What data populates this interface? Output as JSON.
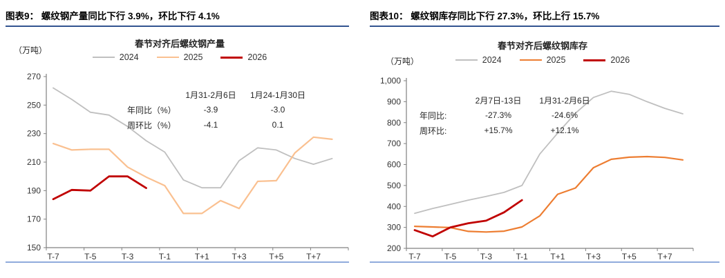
{
  "figures": [
    {
      "caption": "图表9：  螺纹钢产量同比下行 3.9%，环比下行 4.1%",
      "annotation": {
        "col1_header": "1月31-2月6日",
        "col2_header": "1月24-1月30日",
        "rows": [
          {
            "label": "年同比（%）",
            "v1": "-3.9",
            "v2": "-3.0"
          },
          {
            "label": "周环比（%）",
            "v1": "-4.1",
            "v2": "0.1"
          }
        ]
      }
    },
    {
      "caption": "图表10：  螺纹钢库存同比下行 27.3%，环比上行 15.7%",
      "annotation": {
        "col1_header": "2月7日-13日",
        "col2_header": "1月31-2月6日",
        "rows": [
          {
            "label": "年同比:",
            "v1": "-27.3%",
            "v2": "-24.6%"
          },
          {
            "label": "周环比:",
            "v1": "+15.7%",
            "v2": "+12.1%"
          }
        ]
      }
    }
  ],
  "chart_data": [
    {
      "type": "line",
      "title": "春节对齐后螺纹钢产量",
      "unit": "（万吨）",
      "ylabel": "万吨",
      "ylim": [
        150,
        270
      ],
      "yticks": [
        "150",
        "170",
        "190",
        "210",
        "230",
        "250",
        "270"
      ],
      "grid": false,
      "legend_position": "top",
      "categories": [
        "T-7",
        "T-6",
        "T-5",
        "T-4",
        "T-3",
        "T-2",
        "T-1",
        "T",
        "T+1",
        "T+2",
        "T+3",
        "T+4",
        "T+5",
        "T+6",
        "T+7",
        "T+8"
      ],
      "xtick_labels": [
        "T-7",
        "T-5",
        "T-3",
        "T-1",
        "T+1",
        "T+3",
        "T+5",
        "T+7"
      ],
      "series": [
        {
          "name": "2024",
          "color": "#BFBFBF",
          "width": 1.8,
          "values": [
            262,
            254,
            245,
            243,
            235,
            225,
            217,
            197.5,
            192,
            192,
            211,
            220,
            218.5,
            212.5,
            208.5,
            212.5
          ]
        },
        {
          "name": "2025",
          "color": "#FAC090",
          "width": 2.2,
          "values": [
            223,
            218.5,
            219,
            219,
            206.5,
            199.5,
            193.5,
            174,
            174,
            183,
            177.5,
            196.5,
            197,
            216.5,
            227.5,
            226
          ]
        },
        {
          "name": "2026",
          "color": "#C00000",
          "width": 2.8,
          "values": [
            184,
            190.5,
            190,
            200,
            200,
            191.8,
            null,
            null,
            null,
            null,
            null,
            null,
            null,
            null,
            null,
            null
          ]
        }
      ]
    },
    {
      "type": "line",
      "title": "春节对齐后螺纹钢库存",
      "unit": "（万吨）",
      "ylabel": "万吨",
      "ylim": [
        200,
        1000
      ],
      "yticks": [
        "200",
        "300",
        "400",
        "500",
        "600",
        "700",
        "800",
        "900",
        "1,000"
      ],
      "grid": false,
      "legend_position": "top",
      "categories": [
        "T-7",
        "T-6",
        "T-5",
        "T-4",
        "T-3",
        "T-2",
        "T-1",
        "T",
        "T+1",
        "T+2",
        "T+3",
        "T+4",
        "T+5",
        "T+6",
        "T+7",
        "T+8"
      ],
      "xtick_labels": [
        "T-7",
        "T-5",
        "T-3",
        "T-1",
        "T+1",
        "T+3",
        "T+5",
        "T+7"
      ],
      "series": [
        {
          "name": "2024",
          "color": "#BFBFBF",
          "width": 1.8,
          "values": [
            367,
            390,
            410,
            430,
            448,
            467,
            500,
            650,
            750,
            845,
            920,
            950,
            935,
            900,
            868,
            842
          ]
        },
        {
          "name": "2025",
          "color": "#ED7D31",
          "width": 2.2,
          "values": [
            305,
            302,
            299,
            281,
            278,
            282,
            302,
            355,
            458,
            488,
            585,
            625,
            635,
            638,
            634,
            622
          ]
        },
        {
          "name": "2026",
          "color": "#C00000",
          "width": 2.8,
          "values": [
            287,
            257,
            300,
            320,
            332,
            372,
            430,
            null,
            null,
            null,
            null,
            null,
            null,
            null,
            null,
            null
          ]
        }
      ]
    }
  ]
}
